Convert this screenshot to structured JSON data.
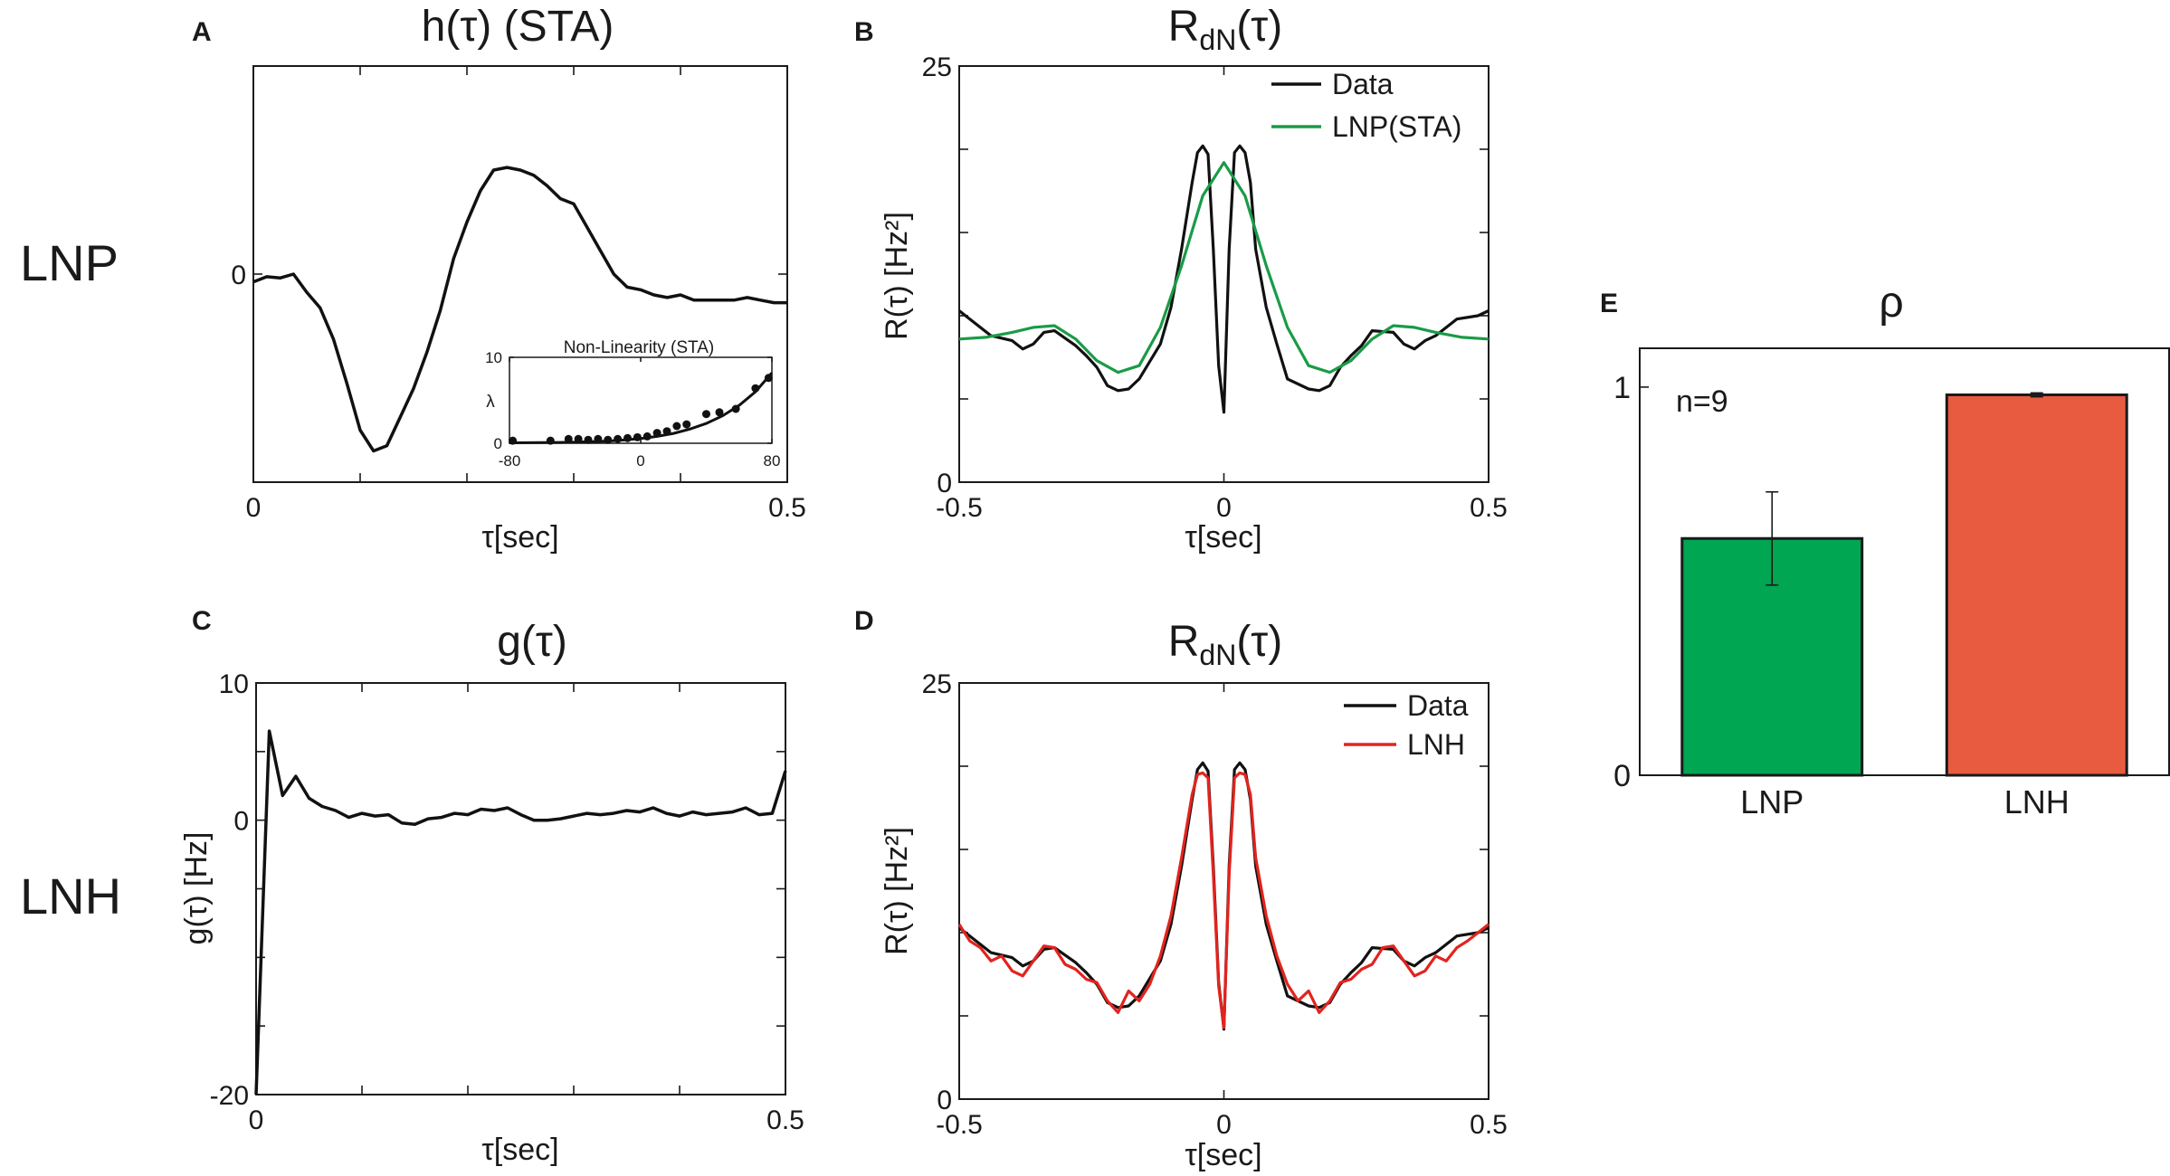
{
  "row_labels": {
    "top": "LNP",
    "bottom": "LNH"
  },
  "colors": {
    "black": "#111111",
    "green": "#1a9b47",
    "red": "#e3231e",
    "bar_green": "#00a651",
    "bar_red": "#e95b40"
  },
  "chart_data": [
    {
      "id": "A",
      "letter": "A",
      "type": "line",
      "title": "h(τ) (STA)",
      "xlabel": "τ[sec]",
      "ylabel": "",
      "xlim": [
        0,
        0.5
      ],
      "ylim": [
        -0.8,
        0.8
      ],
      "xticks": [
        {
          "value": 0,
          "label": "0"
        },
        {
          "value": 0.1,
          "label": ""
        },
        {
          "value": 0.2,
          "label": ""
        },
        {
          "value": 0.3,
          "label": ""
        },
        {
          "value": 0.4,
          "label": ""
        },
        {
          "value": 0.5,
          "label": "0.5"
        }
      ],
      "yticks": [
        {
          "value": 0,
          "label": "0"
        }
      ],
      "series": [
        {
          "name": "h",
          "color": "#111111",
          "x": [
            0,
            0.0125,
            0.025,
            0.0375,
            0.05,
            0.0625,
            0.075,
            0.0875,
            0.1,
            0.1125,
            0.125,
            0.1375,
            0.15,
            0.1625,
            0.175,
            0.1875,
            0.2,
            0.2125,
            0.225,
            0.2375,
            0.25,
            0.2625,
            0.275,
            0.2875,
            0.3,
            0.3125,
            0.325,
            0.3375,
            0.35,
            0.3625,
            0.375,
            0.3875,
            0.4,
            0.4125,
            0.425,
            0.4375,
            0.45,
            0.4625,
            0.475,
            0.4875,
            0.5
          ],
          "y": [
            -0.03,
            -0.01,
            -0.015,
            0.0,
            -0.07,
            -0.13,
            -0.25,
            -0.42,
            -0.6,
            -0.68,
            -0.66,
            -0.55,
            -0.44,
            -0.3,
            -0.14,
            0.06,
            0.2,
            0.32,
            0.4,
            0.41,
            0.4,
            0.38,
            0.34,
            0.29,
            0.27,
            0.18,
            0.09,
            0.0,
            -0.05,
            -0.06,
            -0.08,
            -0.09,
            -0.08,
            -0.1,
            -0.1,
            -0.1,
            -0.1,
            -0.09,
            -0.1,
            -0.11,
            -0.11
          ]
        }
      ],
      "inset": {
        "title": "Non-Linearity (STA)",
        "ylabel": "λ",
        "xlim": [
          -80,
          80
        ],
        "ylim": [
          0,
          10
        ],
        "xticks": [
          {
            "value": -80,
            "label": "-80"
          },
          {
            "value": 0,
            "label": "0"
          },
          {
            "value": 80,
            "label": "80"
          }
        ],
        "yticks": [
          {
            "value": 0,
            "label": "0"
          },
          {
            "value": 10,
            "label": "10"
          }
        ],
        "points_x": [
          -78,
          -55,
          -44,
          -38,
          -32,
          -26,
          -20,
          -14,
          -8,
          -2,
          4,
          10,
          16,
          22,
          28,
          40,
          48,
          58,
          70,
          78
        ],
        "points_y": [
          0.3,
          0.3,
          0.5,
          0.5,
          0.4,
          0.5,
          0.4,
          0.5,
          0.6,
          0.7,
          0.8,
          1.2,
          1.4,
          2.0,
          2.2,
          3.4,
          3.6,
          4.0,
          6.4,
          7.6
        ],
        "curve_x": [
          -80,
          -70,
          -60,
          -50,
          -40,
          -30,
          -20,
          -10,
          0,
          10,
          20,
          30,
          40,
          50,
          60,
          70,
          80
        ],
        "curve_y": [
          0.05,
          0.06,
          0.08,
          0.1,
          0.13,
          0.18,
          0.25,
          0.38,
          0.55,
          0.8,
          1.15,
          1.65,
          2.3,
          3.2,
          4.4,
          6.0,
          8.2
        ]
      }
    },
    {
      "id": "B",
      "letter": "B",
      "type": "line",
      "title": "R",
      "title_sub": "dN",
      "title_suffix": "(τ)",
      "xlabel": "τ[sec]",
      "ylabel": "R(τ) [Hz²]",
      "xlim": [
        -0.5,
        0.5
      ],
      "ylim": [
        0,
        25
      ],
      "xticks": [
        {
          "value": -0.5,
          "label": "-0.5"
        },
        {
          "value": 0,
          "label": "0"
        },
        {
          "value": 0.5,
          "label": "0.5"
        }
      ],
      "yticks": [
        {
          "value": 0,
          "label": "0"
        },
        {
          "value": 5,
          "label": ""
        },
        {
          "value": 10,
          "label": ""
        },
        {
          "value": 15,
          "label": ""
        },
        {
          "value": 20,
          "label": ""
        },
        {
          "value": 25,
          "label": "25"
        }
      ],
      "legend": {
        "position": "top-right",
        "entries": [
          "Data",
          "LNP(STA)"
        ]
      },
      "series": [
        {
          "name": "Data",
          "color": "#111111",
          "x": [
            -0.5,
            -0.48,
            -0.44,
            -0.4,
            -0.38,
            -0.36,
            -0.34,
            -0.32,
            -0.28,
            -0.26,
            -0.24,
            -0.22,
            -0.2,
            -0.18,
            -0.16,
            -0.12,
            -0.1,
            -0.08,
            -0.06,
            -0.05,
            -0.04,
            -0.03,
            -0.02,
            -0.01,
            0,
            0.01,
            0.02,
            0.03,
            0.04,
            0.05,
            0.06,
            0.08,
            0.1,
            0.12,
            0.16,
            0.18,
            0.2,
            0.22,
            0.24,
            0.26,
            0.28,
            0.32,
            0.34,
            0.36,
            0.38,
            0.4,
            0.44,
            0.48,
            0.5
          ],
          "y": [
            10.3,
            9.8,
            8.8,
            8.5,
            8.0,
            8.3,
            9.0,
            9.1,
            8.2,
            7.6,
            6.9,
            5.8,
            5.5,
            5.6,
            6.2,
            8.3,
            10.5,
            14.0,
            18.0,
            19.8,
            20.2,
            19.7,
            14.0,
            7.0,
            4.2,
            14.0,
            19.8,
            20.2,
            19.8,
            18.0,
            14.0,
            10.5,
            8.3,
            6.2,
            5.6,
            5.5,
            5.8,
            6.9,
            7.6,
            8.2,
            9.1,
            9.0,
            8.3,
            8.0,
            8.5,
            8.8,
            9.8,
            10.0,
            10.3
          ]
        },
        {
          "name": "LNP(STA)",
          "color": "#1a9b47",
          "x": [
            -0.5,
            -0.45,
            -0.4,
            -0.36,
            -0.32,
            -0.28,
            -0.24,
            -0.2,
            -0.16,
            -0.12,
            -0.08,
            -0.04,
            0,
            0.04,
            0.08,
            0.12,
            0.16,
            0.2,
            0.24,
            0.28,
            0.32,
            0.36,
            0.4,
            0.45,
            0.5
          ],
          "y": [
            8.6,
            8.7,
            9.0,
            9.3,
            9.4,
            8.6,
            7.3,
            6.6,
            7.0,
            9.3,
            13.0,
            17.2,
            19.2,
            17.2,
            13.0,
            9.3,
            7.0,
            6.6,
            7.3,
            8.6,
            9.4,
            9.3,
            9.0,
            8.7,
            8.6
          ]
        }
      ]
    },
    {
      "id": "C",
      "letter": "C",
      "type": "line",
      "title": "g(τ)",
      "xlabel": "τ[sec]",
      "ylabel": "g(τ) [Hz]",
      "xlim": [
        0,
        0.5
      ],
      "ylim": [
        -20,
        10
      ],
      "xticks": [
        {
          "value": 0,
          "label": "0"
        },
        {
          "value": 0.1,
          "label": ""
        },
        {
          "value": 0.2,
          "label": ""
        },
        {
          "value": 0.3,
          "label": ""
        },
        {
          "value": 0.4,
          "label": ""
        },
        {
          "value": 0.5,
          "label": "0.5"
        }
      ],
      "yticks": [
        {
          "value": -20,
          "label": "-20"
        },
        {
          "value": -15,
          "label": ""
        },
        {
          "value": -10,
          "label": ""
        },
        {
          "value": -5,
          "label": ""
        },
        {
          "value": 0,
          "label": "0"
        },
        {
          "value": 5,
          "label": ""
        },
        {
          "value": 10,
          "label": "10"
        }
      ],
      "series": [
        {
          "name": "g",
          "color": "#111111",
          "x": [
            0,
            0.0125,
            0.025,
            0.0375,
            0.05,
            0.0625,
            0.075,
            0.0875,
            0.1,
            0.1125,
            0.125,
            0.1375,
            0.15,
            0.1625,
            0.175,
            0.1875,
            0.2,
            0.2125,
            0.225,
            0.2375,
            0.25,
            0.2625,
            0.275,
            0.2875,
            0.3,
            0.3125,
            0.325,
            0.3375,
            0.35,
            0.3625,
            0.375,
            0.3875,
            0.4,
            0.4125,
            0.425,
            0.4375,
            0.45,
            0.4625,
            0.475,
            0.4875,
            0.5
          ],
          "y": [
            -20,
            6.5,
            1.8,
            3.2,
            1.6,
            1.0,
            0.7,
            0.2,
            0.5,
            0.3,
            0.4,
            -0.2,
            -0.3,
            0.1,
            0.2,
            0.5,
            0.4,
            0.8,
            0.7,
            0.9,
            0.4,
            0.0,
            0.0,
            0.1,
            0.3,
            0.5,
            0.4,
            0.5,
            0.7,
            0.6,
            0.9,
            0.5,
            0.3,
            0.6,
            0.4,
            0.5,
            0.6,
            0.9,
            0.4,
            0.5,
            3.6
          ]
        }
      ]
    },
    {
      "id": "D",
      "letter": "D",
      "type": "line",
      "title": "R",
      "title_sub": "dN",
      "title_suffix": "(τ)",
      "xlabel": "τ[sec]",
      "ylabel": "R(τ) [Hz²]",
      "xlim": [
        -0.5,
        0.5
      ],
      "ylim": [
        0,
        25
      ],
      "xticks": [
        {
          "value": -0.5,
          "label": "-0.5"
        },
        {
          "value": 0,
          "label": "0"
        },
        {
          "value": 0.5,
          "label": "0.5"
        }
      ],
      "yticks": [
        {
          "value": 0,
          "label": "0"
        },
        {
          "value": 5,
          "label": ""
        },
        {
          "value": 10,
          "label": ""
        },
        {
          "value": 15,
          "label": ""
        },
        {
          "value": 20,
          "label": ""
        },
        {
          "value": 25,
          "label": "25"
        }
      ],
      "legend": {
        "position": "top-right",
        "entries": [
          "Data",
          "LNH"
        ]
      },
      "series": [
        {
          "name": "Data",
          "color": "#111111",
          "x": [
            -0.5,
            -0.48,
            -0.44,
            -0.4,
            -0.38,
            -0.36,
            -0.34,
            -0.32,
            -0.28,
            -0.26,
            -0.24,
            -0.22,
            -0.2,
            -0.18,
            -0.16,
            -0.12,
            -0.1,
            -0.08,
            -0.06,
            -0.05,
            -0.04,
            -0.03,
            -0.02,
            -0.01,
            0,
            0.01,
            0.02,
            0.03,
            0.04,
            0.05,
            0.06,
            0.08,
            0.1,
            0.12,
            0.16,
            0.18,
            0.2,
            0.22,
            0.24,
            0.26,
            0.28,
            0.32,
            0.34,
            0.36,
            0.38,
            0.4,
            0.44,
            0.48,
            0.5
          ],
          "y": [
            10.3,
            9.8,
            8.8,
            8.5,
            8.0,
            8.3,
            9.0,
            9.1,
            8.2,
            7.6,
            6.9,
            5.8,
            5.5,
            5.6,
            6.2,
            8.3,
            10.5,
            14.0,
            18.0,
            19.8,
            20.2,
            19.7,
            14.0,
            7.0,
            4.2,
            14.0,
            19.8,
            20.2,
            19.8,
            18.0,
            14.0,
            10.5,
            8.3,
            6.2,
            5.6,
            5.5,
            5.8,
            6.9,
            7.6,
            8.2,
            9.1,
            9.0,
            8.3,
            8.0,
            8.5,
            8.8,
            9.8,
            10.0,
            10.3
          ]
        },
        {
          "name": "LNH",
          "color": "#e3231e",
          "x": [
            -0.5,
            -0.48,
            -0.46,
            -0.44,
            -0.42,
            -0.4,
            -0.38,
            -0.36,
            -0.34,
            -0.32,
            -0.3,
            -0.28,
            -0.26,
            -0.24,
            -0.22,
            -0.2,
            -0.18,
            -0.16,
            -0.14,
            -0.12,
            -0.1,
            -0.08,
            -0.06,
            -0.05,
            -0.04,
            -0.03,
            -0.02,
            -0.01,
            0,
            0.01,
            0.02,
            0.03,
            0.04,
            0.05,
            0.06,
            0.08,
            0.1,
            0.12,
            0.14,
            0.16,
            0.18,
            0.2,
            0.22,
            0.24,
            0.26,
            0.28,
            0.3,
            0.32,
            0.34,
            0.36,
            0.38,
            0.4,
            0.42,
            0.44,
            0.46,
            0.48,
            0.5
          ],
          "y": [
            10.5,
            9.5,
            9.1,
            8.3,
            8.6,
            7.7,
            7.4,
            8.3,
            9.2,
            9.1,
            8.1,
            7.8,
            7.2,
            7.0,
            5.9,
            5.2,
            6.5,
            5.9,
            6.9,
            8.6,
            11.0,
            14.5,
            18.3,
            19.5,
            19.6,
            19.3,
            13.5,
            6.8,
            4.3,
            13.5,
            19.3,
            19.6,
            19.5,
            18.3,
            14.5,
            11.0,
            8.6,
            6.9,
            5.9,
            6.5,
            5.2,
            5.9,
            7.0,
            7.2,
            7.8,
            8.1,
            9.1,
            9.2,
            8.3,
            7.4,
            7.7,
            8.6,
            8.3,
            9.1,
            9.5,
            10.0,
            10.5
          ]
        }
      ]
    },
    {
      "id": "E",
      "letter": "E",
      "type": "bar",
      "title": "ρ",
      "annotation": "n=9",
      "categories": [
        "LNP",
        "LNH"
      ],
      "values": [
        0.61,
        0.98
      ],
      "errors": [
        0.12,
        0.005
      ],
      "bar_colors": [
        "#00a651",
        "#e95b40"
      ],
      "ylim": [
        0,
        1.1
      ],
      "yticks": [
        {
          "value": 0,
          "label": "0"
        },
        {
          "value": 1,
          "label": "1"
        }
      ]
    }
  ]
}
